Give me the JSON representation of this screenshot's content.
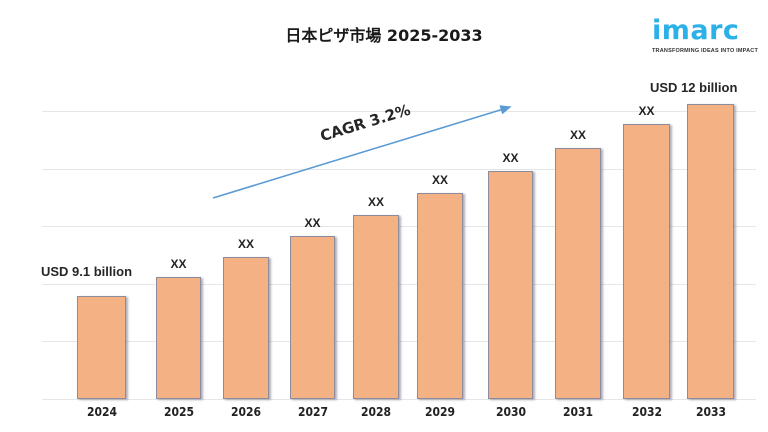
{
  "title": "日本ピザ市場 2025-2033",
  "logo": {
    "wordmark": "imarc",
    "tagline": "TRANSFORMING IDEAS INTO IMPACT",
    "color": "#2bb0e8"
  },
  "annotations": {
    "start_value": "USD 9.1 billion",
    "end_value": "USD 12 billion",
    "cagr": "CAGR 3.2%"
  },
  "colors": {
    "bar_fill": "#f4b183",
    "bar_border": "#8c8c9c",
    "arrow": "#5b9bd5",
    "gridline": "#e6e6e6"
  },
  "chart_data": {
    "type": "bar",
    "title": "日本ピザ市場 2025-2033",
    "xlabel": "",
    "ylabel": "",
    "unit": "USD billion",
    "categories": [
      "2024",
      "2025",
      "2026",
      "2027",
      "2028",
      "2029",
      "2030",
      "2031",
      "2032",
      "2033"
    ],
    "values": [
      9.1,
      9.39,
      9.69,
      10.0,
      10.32,
      10.65,
      10.99,
      11.34,
      11.7,
      12.0
    ],
    "data_labels": [
      "USD 9.1 billion",
      "XX",
      "XX",
      "XX",
      "XX",
      "XX",
      "XX",
      "XX",
      "XX",
      "USD 12 billion"
    ],
    "annotations": [
      "CAGR 3.2%"
    ],
    "grid": true,
    "gridline_count": 6,
    "legend": "none",
    "y_axis_visible": false
  }
}
